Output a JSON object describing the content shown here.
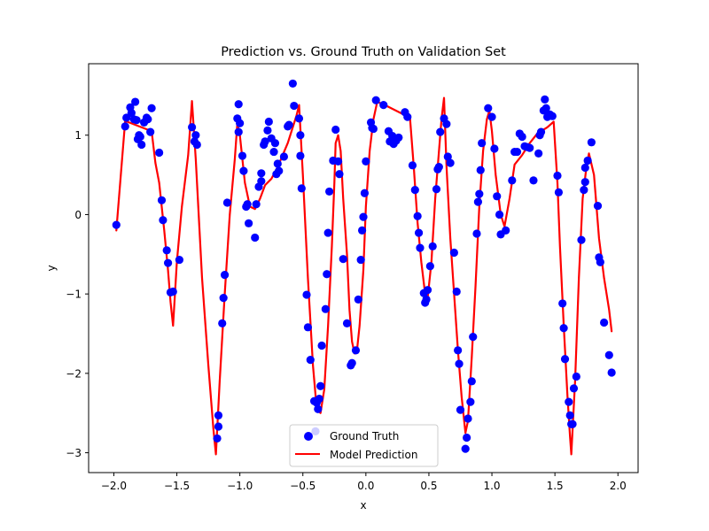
{
  "chart_data": {
    "type": "scatter",
    "title": "Prediction vs. Ground Truth on Validation Set",
    "xlabel": "x",
    "ylabel": "y",
    "xlim": [
      -2.2,
      2.16
    ],
    "ylim": [
      -3.25,
      1.9
    ],
    "x_ticks": [
      -2.0,
      -1.5,
      -1.0,
      -0.5,
      0.0,
      0.5,
      1.0,
      1.5,
      2.0
    ],
    "x_tick_labels": [
      "−2.0",
      "−1.5",
      "−1.0",
      "−0.5",
      "0.0",
      "0.5",
      "1.0",
      "1.5",
      "2.0"
    ],
    "y_ticks": [
      -3,
      -2,
      -1,
      0,
      1
    ],
    "y_tick_labels": [
      "−3",
      "−2",
      "−1",
      "0",
      "1"
    ],
    "grid": false,
    "legend_position": "lower center",
    "series": [
      {
        "name": "Ground Truth",
        "kind": "scatter",
        "color": "#0000ff",
        "points": [
          [
            -1.98,
            -0.13
          ],
          [
            -1.91,
            1.11
          ],
          [
            -1.9,
            1.22
          ],
          [
            -1.87,
            1.35
          ],
          [
            -1.86,
            1.28
          ],
          [
            -1.84,
            1.2
          ],
          [
            -1.83,
            1.42
          ],
          [
            -1.82,
            1.19
          ],
          [
            -1.81,
            0.95
          ],
          [
            -1.8,
            1.0
          ],
          [
            -1.79,
            0.98
          ],
          [
            -1.78,
            0.88
          ],
          [
            -1.76,
            1.16
          ],
          [
            -1.74,
            1.22
          ],
          [
            -1.73,
            1.2
          ],
          [
            -1.71,
            1.04
          ],
          [
            -1.7,
            1.34
          ],
          [
            -1.64,
            0.78
          ],
          [
            -1.62,
            0.18
          ],
          [
            -1.61,
            -0.07
          ],
          [
            -1.58,
            -0.45
          ],
          [
            -1.57,
            -0.61
          ],
          [
            -1.55,
            -0.98
          ],
          [
            -1.53,
            -0.97
          ],
          [
            -1.48,
            -0.57
          ],
          [
            -1.38,
            1.1
          ],
          [
            -1.36,
            0.92
          ],
          [
            -1.35,
            1.0
          ],
          [
            -1.34,
            0.88
          ],
          [
            -1.18,
            -2.82
          ],
          [
            -1.17,
            -2.53
          ],
          [
            -1.17,
            -2.67
          ],
          [
            -1.14,
            -1.37
          ],
          [
            -1.13,
            -1.05
          ],
          [
            -1.12,
            -0.76
          ],
          [
            -1.1,
            0.15
          ],
          [
            -1.02,
            1.21
          ],
          [
            -1.01,
            1.39
          ],
          [
            -1.01,
            1.04
          ],
          [
            -1.0,
            1.15
          ],
          [
            -0.98,
            0.74
          ],
          [
            -0.97,
            0.55
          ],
          [
            -0.95,
            0.1
          ],
          [
            -0.94,
            0.13
          ],
          [
            -0.93,
            -0.11
          ],
          [
            -0.88,
            -0.29
          ],
          [
            -0.87,
            0.13
          ],
          [
            -0.85,
            0.35
          ],
          [
            -0.83,
            0.42
          ],
          [
            -0.83,
            0.52
          ],
          [
            -0.81,
            0.88
          ],
          [
            -0.8,
            0.92
          ],
          [
            -0.78,
            1.06
          ],
          [
            -0.77,
            1.17
          ],
          [
            -0.75,
            0.96
          ],
          [
            -0.73,
            0.79
          ],
          [
            -0.72,
            0.9
          ],
          [
            -0.71,
            0.51
          ],
          [
            -0.7,
            0.64
          ],
          [
            -0.69,
            0.55
          ],
          [
            -0.65,
            0.73
          ],
          [
            -0.62,
            1.11
          ],
          [
            -0.61,
            1.13
          ],
          [
            -0.58,
            1.65
          ],
          [
            -0.57,
            1.37
          ],
          [
            -0.53,
            1.21
          ],
          [
            -0.52,
            1.0
          ],
          [
            -0.52,
            0.74
          ],
          [
            -0.51,
            0.33
          ],
          [
            -0.47,
            -1.01
          ],
          [
            -0.46,
            -1.42
          ],
          [
            -0.44,
            -1.83
          ],
          [
            -0.41,
            -2.35
          ],
          [
            -0.4,
            -2.73
          ],
          [
            -0.39,
            -2.37
          ],
          [
            -0.38,
            -2.45
          ],
          [
            -0.37,
            -2.32
          ],
          [
            -0.36,
            -2.16
          ],
          [
            -0.35,
            -1.65
          ],
          [
            -0.32,
            -1.19
          ],
          [
            -0.31,
            -0.75
          ],
          [
            -0.3,
            -0.23
          ],
          [
            -0.29,
            0.29
          ],
          [
            -0.26,
            0.68
          ],
          [
            -0.24,
            1.07
          ],
          [
            -0.22,
            0.67
          ],
          [
            -0.21,
            0.51
          ],
          [
            -0.18,
            -0.56
          ],
          [
            -0.15,
            -1.37
          ],
          [
            -0.12,
            -1.9
          ],
          [
            -0.11,
            -1.87
          ],
          [
            -0.08,
            -1.71
          ],
          [
            -0.06,
            -1.07
          ],
          [
            -0.04,
            -0.57
          ],
          [
            -0.03,
            -0.2
          ],
          [
            -0.02,
            -0.03
          ],
          [
            -0.01,
            0.27
          ],
          [
            0.0,
            0.67
          ],
          [
            0.04,
            1.16
          ],
          [
            0.05,
            1.09
          ],
          [
            0.06,
            1.08
          ],
          [
            0.08,
            1.44
          ],
          [
            0.14,
            1.38
          ],
          [
            0.18,
            1.05
          ],
          [
            0.19,
            0.92
          ],
          [
            0.21,
            0.99
          ],
          [
            0.22,
            0.89
          ],
          [
            0.24,
            0.93
          ],
          [
            0.26,
            0.97
          ],
          [
            0.31,
            1.29
          ],
          [
            0.33,
            1.23
          ],
          [
            0.37,
            0.62
          ],
          [
            0.39,
            0.31
          ],
          [
            0.41,
            -0.02
          ],
          [
            0.42,
            -0.23
          ],
          [
            0.43,
            -0.42
          ],
          [
            0.46,
            -0.99
          ],
          [
            0.47,
            -1.11
          ],
          [
            0.48,
            -1.07
          ],
          [
            0.49,
            -0.95
          ],
          [
            0.51,
            -0.65
          ],
          [
            0.53,
            -0.4
          ],
          [
            0.56,
            0.32
          ],
          [
            0.57,
            0.57
          ],
          [
            0.58,
            0.6
          ],
          [
            0.59,
            1.04
          ],
          [
            0.62,
            1.21
          ],
          [
            0.64,
            1.14
          ],
          [
            0.65,
            0.73
          ],
          [
            0.67,
            0.65
          ],
          [
            0.7,
            -0.48
          ],
          [
            0.72,
            -0.97
          ],
          [
            0.73,
            -1.71
          ],
          [
            0.74,
            -1.88
          ],
          [
            0.75,
            -2.46
          ],
          [
            0.79,
            -2.95
          ],
          [
            0.8,
            -2.81
          ],
          [
            0.81,
            -2.57
          ],
          [
            0.83,
            -2.36
          ],
          [
            0.84,
            -2.1
          ],
          [
            0.85,
            -1.54
          ],
          [
            0.88,
            -0.24
          ],
          [
            0.89,
            0.16
          ],
          [
            0.9,
            0.26
          ],
          [
            0.91,
            0.56
          ],
          [
            0.92,
            0.9
          ],
          [
            0.97,
            1.34
          ],
          [
            1.0,
            1.23
          ],
          [
            1.02,
            0.83
          ],
          [
            1.04,
            0.23
          ],
          [
            1.06,
            0.0
          ],
          [
            1.07,
            -0.25
          ],
          [
            1.11,
            -0.2
          ],
          [
            1.16,
            0.43
          ],
          [
            1.18,
            0.79
          ],
          [
            1.2,
            0.79
          ],
          [
            1.22,
            1.02
          ],
          [
            1.24,
            0.98
          ],
          [
            1.26,
            0.86
          ],
          [
            1.28,
            0.85
          ],
          [
            1.3,
            0.84
          ],
          [
            1.33,
            0.43
          ],
          [
            1.37,
            0.77
          ],
          [
            1.38,
            1.0
          ],
          [
            1.39,
            1.04
          ],
          [
            1.41,
            1.31
          ],
          [
            1.42,
            1.45
          ],
          [
            1.43,
            1.34
          ],
          [
            1.44,
            1.23
          ],
          [
            1.46,
            1.26
          ],
          [
            1.48,
            1.24
          ],
          [
            1.52,
            0.49
          ],
          [
            1.53,
            0.28
          ],
          [
            1.56,
            -1.12
          ],
          [
            1.57,
            -1.43
          ],
          [
            1.58,
            -1.82
          ],
          [
            1.61,
            -2.36
          ],
          [
            1.62,
            -2.53
          ],
          [
            1.63,
            -2.64
          ],
          [
            1.64,
            -2.64
          ],
          [
            1.65,
            -2.19
          ],
          [
            1.67,
            -2.04
          ],
          [
            1.71,
            -0.32
          ],
          [
            1.73,
            0.31
          ],
          [
            1.74,
            0.41
          ],
          [
            1.74,
            0.59
          ],
          [
            1.76,
            0.68
          ],
          [
            1.79,
            0.91
          ],
          [
            1.84,
            0.11
          ],
          [
            1.85,
            -0.54
          ],
          [
            1.86,
            -0.6
          ],
          [
            1.89,
            -1.36
          ],
          [
            1.93,
            -1.77
          ],
          [
            1.95,
            -1.99
          ]
        ]
      },
      {
        "name": "Model Prediction",
        "kind": "line",
        "color": "#ff0000",
        "points": [
          [
            -1.98,
            -0.2
          ],
          [
            -1.91,
            1.18
          ],
          [
            -1.7,
            1.05
          ],
          [
            -1.67,
            0.65
          ],
          [
            -1.64,
            0.4
          ],
          [
            -1.6,
            -0.2
          ],
          [
            -1.57,
            -0.7
          ],
          [
            -1.55,
            -1.1
          ],
          [
            -1.53,
            -1.4
          ],
          [
            -1.5,
            -0.6
          ],
          [
            -1.46,
            0.1
          ],
          [
            -1.41,
            0.75
          ],
          [
            -1.38,
            1.43
          ],
          [
            -1.35,
            0.7
          ],
          [
            -1.3,
            -0.8
          ],
          [
            -1.25,
            -1.9
          ],
          [
            -1.21,
            -2.7
          ],
          [
            -1.19,
            -3.02
          ],
          [
            -1.16,
            -2.1
          ],
          [
            -1.12,
            -1.0
          ],
          [
            -1.08,
            0.0
          ],
          [
            -1.04,
            0.7
          ],
          [
            -1.02,
            1.15
          ],
          [
            -1.0,
            1.0
          ],
          [
            -0.96,
            0.4
          ],
          [
            -0.92,
            0.1
          ],
          [
            -0.88,
            0.07
          ],
          [
            -0.84,
            0.2
          ],
          [
            -0.8,
            0.37
          ],
          [
            -0.75,
            0.45
          ],
          [
            -0.7,
            0.6
          ],
          [
            -0.66,
            0.75
          ],
          [
            -0.62,
            0.9
          ],
          [
            -0.58,
            1.1
          ],
          [
            -0.55,
            1.25
          ],
          [
            -0.53,
            1.38
          ],
          [
            -0.5,
            0.5
          ],
          [
            -0.46,
            -0.8
          ],
          [
            -0.42,
            -1.9
          ],
          [
            -0.39,
            -2.45
          ],
          [
            -0.36,
            -2.5
          ],
          [
            -0.33,
            -2.2
          ],
          [
            -0.3,
            -1.4
          ],
          [
            -0.27,
            -0.4
          ],
          [
            -0.25,
            0.4
          ],
          [
            -0.24,
            0.9
          ],
          [
            -0.22,
            1.0
          ],
          [
            -0.2,
            0.8
          ],
          [
            -0.18,
            0.2
          ],
          [
            -0.15,
            -0.5
          ],
          [
            -0.13,
            -1.2
          ],
          [
            -0.11,
            -1.6
          ],
          [
            -0.09,
            -1.75
          ],
          [
            -0.07,
            -1.7
          ],
          [
            -0.05,
            -1.4
          ],
          [
            -0.02,
            -0.7
          ],
          [
            0.0,
            0.1
          ],
          [
            0.03,
            0.8
          ],
          [
            0.06,
            1.2
          ],
          [
            0.09,
            1.42
          ],
          [
            0.15,
            1.38
          ],
          [
            0.35,
            1.22
          ],
          [
            0.38,
            0.6
          ],
          [
            0.41,
            -0.1
          ],
          [
            0.44,
            -0.6
          ],
          [
            0.47,
            -1.0
          ],
          [
            0.49,
            -1.05
          ],
          [
            0.52,
            -0.6
          ],
          [
            0.55,
            0.2
          ],
          [
            0.58,
            0.8
          ],
          [
            0.6,
            1.2
          ],
          [
            0.62,
            1.47
          ],
          [
            0.64,
            0.6
          ],
          [
            0.67,
            -0.3
          ],
          [
            0.7,
            -1.0
          ],
          [
            0.73,
            -1.7
          ],
          [
            0.76,
            -2.3
          ],
          [
            0.79,
            -2.75
          ],
          [
            0.81,
            -2.6
          ],
          [
            0.84,
            -1.8
          ],
          [
            0.87,
            -0.9
          ],
          [
            0.9,
            0.1
          ],
          [
            0.93,
            0.8
          ],
          [
            0.96,
            1.2
          ],
          [
            0.98,
            1.31
          ],
          [
            1.0,
            1.05
          ],
          [
            1.03,
            0.5
          ],
          [
            1.07,
            0.0
          ],
          [
            1.1,
            -0.15
          ],
          [
            1.14,
            0.2
          ],
          [
            1.18,
            0.63
          ],
          [
            1.24,
            0.75
          ],
          [
            1.3,
            0.9
          ],
          [
            1.36,
            1.02
          ],
          [
            1.44,
            1.1
          ],
          [
            1.49,
            1.17
          ],
          [
            1.52,
            0.4
          ],
          [
            1.54,
            -0.4
          ],
          [
            1.57,
            -1.4
          ],
          [
            1.6,
            -2.3
          ],
          [
            1.62,
            -2.8
          ],
          [
            1.63,
            -3.02
          ],
          [
            1.66,
            -2.1
          ],
          [
            1.69,
            -0.8
          ],
          [
            1.72,
            0.2
          ],
          [
            1.75,
            0.6
          ],
          [
            1.77,
            0.77
          ],
          [
            1.81,
            0.5
          ],
          [
            1.85,
            -0.3
          ],
          [
            1.89,
            -0.8
          ],
          [
            1.93,
            -1.2
          ],
          [
            1.95,
            -1.47
          ]
        ]
      }
    ]
  }
}
